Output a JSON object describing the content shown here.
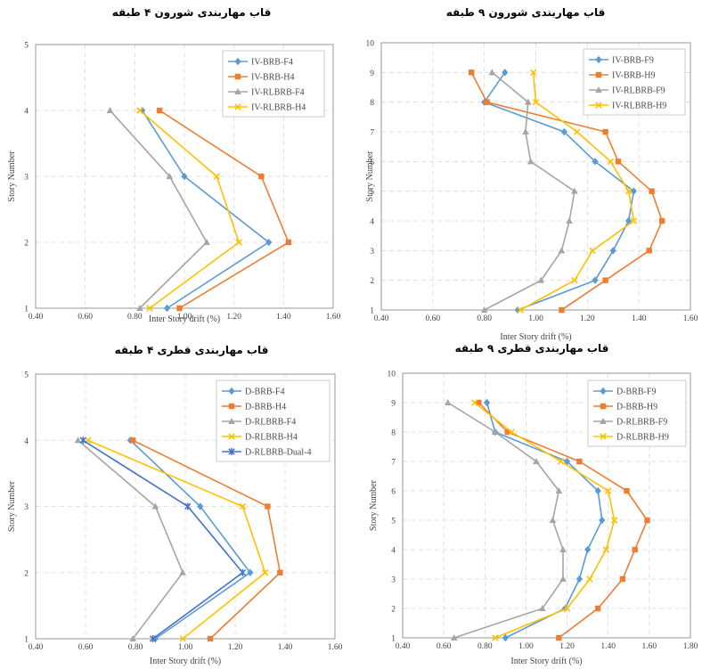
{
  "chart_data": [
    {
      "type": "line",
      "title": "قاب مهاربندی شورون ۴ طبقه",
      "xlabel": "Inter Story drift (%)",
      "ylabel": "Story Number",
      "xlim": [
        0.4,
        1.6
      ],
      "ylim": [
        1,
        5
      ],
      "xticks": [
        "0.40",
        "0.60",
        "0.80",
        "1.00",
        "1.20",
        "1.40",
        "1.60"
      ],
      "yticks": [
        "1",
        "2",
        "3",
        "4",
        "5"
      ],
      "grid": true,
      "legend": "top-right",
      "series": [
        {
          "name": "IV-BRB-F4",
          "color": "#5b9bd5",
          "marker": "diamond",
          "x": [
            0.93,
            1.34,
            1.0,
            0.83
          ],
          "y": [
            1,
            2,
            3,
            4
          ]
        },
        {
          "name": "IV-BRB-H4",
          "color": "#ed7d31",
          "marker": "square",
          "x": [
            0.98,
            1.42,
            1.31,
            0.9
          ],
          "y": [
            1,
            2,
            3,
            4
          ]
        },
        {
          "name": "IV-RLBRB-F4",
          "color": "#a5a5a5",
          "marker": "triangle",
          "x": [
            0.82,
            1.09,
            0.94,
            0.7
          ],
          "y": [
            1,
            2,
            3,
            4
          ]
        },
        {
          "name": "IV-RLBRB-H4",
          "color": "#ffc000",
          "marker": "x",
          "x": [
            0.86,
            1.22,
            1.13,
            0.82
          ],
          "y": [
            1,
            2,
            3,
            4
          ]
        }
      ]
    },
    {
      "type": "line",
      "title": "قاب مهاربندی شورون ۹ طبقه",
      "xlabel": "Inter Story drift (%)",
      "ylabel": "Story Number",
      "xlim": [
        0.4,
        1.6
      ],
      "ylim": [
        1,
        10
      ],
      "xticks": [
        "0.40",
        "0.60",
        "0.80",
        "1.00",
        "1.20",
        "1.40",
        "1.60"
      ],
      "yticks": [
        "1",
        "2",
        "3",
        "4",
        "5",
        "6",
        "7",
        "8",
        "9",
        "10"
      ],
      "grid": true,
      "legend": "top-right",
      "series": [
        {
          "name": "IV-BRB-F9",
          "color": "#5b9bd5",
          "marker": "diamond",
          "x": [
            0.93,
            1.23,
            1.3,
            1.36,
            1.38,
            1.23,
            1.11,
            0.8,
            0.88
          ],
          "y": [
            1,
            2,
            3,
            4,
            5,
            6,
            7,
            8,
            9
          ]
        },
        {
          "name": "IV-BRB-H9",
          "color": "#ed7d31",
          "marker": "square",
          "x": [
            1.1,
            1.27,
            1.44,
            1.49,
            1.45,
            1.32,
            1.27,
            0.81,
            0.75
          ],
          "y": [
            1,
            2,
            3,
            4,
            5,
            6,
            7,
            8,
            9
          ]
        },
        {
          "name": "IV-RLBRB-F9",
          "color": "#a5a5a5",
          "marker": "triangle",
          "x": [
            0.8,
            1.02,
            1.1,
            1.13,
            1.15,
            0.98,
            0.96,
            0.97,
            0.83
          ],
          "y": [
            1,
            2,
            3,
            4,
            5,
            6,
            7,
            8,
            9
          ]
        },
        {
          "name": "IV-RLBRB-H9",
          "color": "#ffc000",
          "marker": "x",
          "x": [
            0.94,
            1.15,
            1.22,
            1.38,
            1.36,
            1.29,
            1.16,
            1.0,
            0.99
          ],
          "y": [
            1,
            2,
            3,
            4,
            5,
            6,
            7,
            8,
            9
          ]
        }
      ]
    },
    {
      "type": "line",
      "title": "قاب مهاربندی قطری ۴ طبقه",
      "xlabel": "Inter Story drift (%)",
      "ylabel": "Story Number",
      "xlim": [
        0.4,
        1.6
      ],
      "ylim": [
        1,
        5
      ],
      "xticks": [
        "0.40",
        "0.60",
        "0.80",
        "1.00",
        "1.20",
        "1.40",
        "1.60"
      ],
      "yticks": [
        "1",
        "2",
        "3",
        "4",
        "5"
      ],
      "grid": true,
      "legend": "top-right",
      "series": [
        {
          "name": "D-BRB-F4",
          "color": "#5b9bd5",
          "marker": "diamond",
          "x": [
            0.88,
            1.26,
            1.06,
            0.78
          ],
          "y": [
            1,
            2,
            3,
            4
          ]
        },
        {
          "name": "D-BRB-H4",
          "color": "#ed7d31",
          "marker": "square",
          "x": [
            1.1,
            1.38,
            1.33,
            0.79
          ],
          "y": [
            1,
            2,
            3,
            4
          ]
        },
        {
          "name": "D-RLBRB-F4",
          "color": "#a5a5a5",
          "marker": "triangle",
          "x": [
            0.79,
            0.99,
            0.88,
            0.57
          ],
          "y": [
            1,
            2,
            3,
            4
          ]
        },
        {
          "name": "D-RLBRB-H4",
          "color": "#ffc000",
          "marker": "x",
          "x": [
            0.99,
            1.32,
            1.23,
            0.61
          ],
          "y": [
            1,
            2,
            3,
            4
          ]
        },
        {
          "name": "D-RLBRB-Dual-4",
          "color": "#4472c4",
          "marker": "star",
          "x": [
            0.87,
            1.23,
            1.01,
            0.59
          ],
          "y": [
            1,
            2,
            3,
            4
          ]
        }
      ]
    },
    {
      "type": "line",
      "title": "قاب مهاربندی قطری ۹ طبقه",
      "xlabel": "Inter Story drift (%)",
      "ylabel": "Story Number",
      "xlim": [
        0.4,
        1.8
      ],
      "ylim": [
        1,
        10
      ],
      "xticks": [
        "0.40",
        "0.60",
        "0.80",
        "1.00",
        "1.20",
        "1.40",
        "1.60",
        "1.80"
      ],
      "yticks": [
        "1",
        "2",
        "3",
        "4",
        "5",
        "6",
        "7",
        "8",
        "9",
        "10"
      ],
      "grid": true,
      "legend": "top-right",
      "series": [
        {
          "name": "D-BRB-F9",
          "color": "#5b9bd5",
          "marker": "diamond",
          "x": [
            0.9,
            1.19,
            1.26,
            1.3,
            1.37,
            1.35,
            1.2,
            0.85,
            0.81
          ],
          "y": [
            1,
            2,
            3,
            4,
            5,
            6,
            7,
            8,
            9
          ]
        },
        {
          "name": "D-BRB-H9",
          "color": "#ed7d31",
          "marker": "square",
          "x": [
            1.16,
            1.35,
            1.47,
            1.53,
            1.59,
            1.49,
            1.26,
            0.91,
            0.77
          ],
          "y": [
            1,
            2,
            3,
            4,
            5,
            6,
            7,
            8,
            9
          ]
        },
        {
          "name": "D-RLBRB-F9",
          "color": "#a5a5a5",
          "marker": "triangle",
          "x": [
            0.65,
            1.08,
            1.18,
            1.18,
            1.13,
            1.16,
            1.05,
            0.85,
            0.62
          ],
          "y": [
            1,
            2,
            3,
            4,
            5,
            6,
            7,
            8,
            9
          ]
        },
        {
          "name": "D-RLBRB-H9",
          "color": "#ffc000",
          "marker": "x",
          "x": [
            0.85,
            1.2,
            1.31,
            1.39,
            1.43,
            1.4,
            1.17,
            0.93,
            0.75
          ],
          "y": [
            1,
            2,
            3,
            4,
            5,
            6,
            7,
            8,
            9
          ]
        }
      ]
    }
  ]
}
